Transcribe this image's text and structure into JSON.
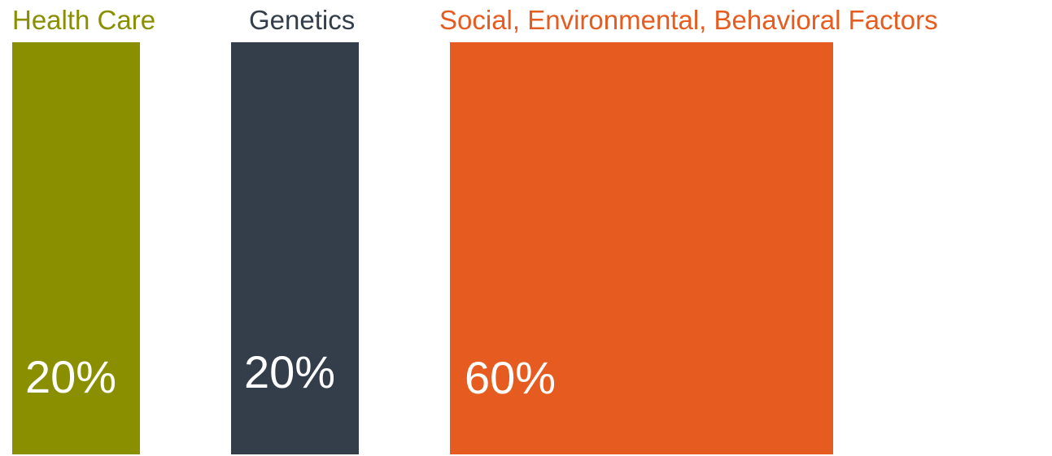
{
  "chart_data": {
    "type": "bar",
    "categories": [
      "Health Care",
      "Genetics",
      "Social, Environmental, Behavioral Factors"
    ],
    "values": [
      20,
      20,
      60
    ],
    "value_labels": [
      "20%",
      "20%",
      "60%"
    ],
    "unit": "%",
    "colors": [
      "#8a8f00",
      "#333e4a",
      "#e65c20"
    ],
    "title": "",
    "xlabel": "",
    "ylabel": "",
    "ylim": [
      0,
      100
    ],
    "grid": false,
    "legend": "none"
  }
}
